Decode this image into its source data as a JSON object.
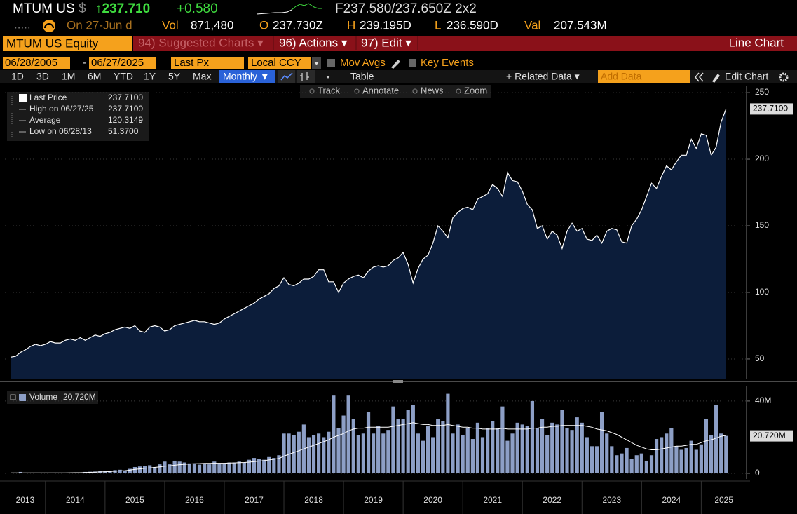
{
  "quote": {
    "ticker": "MTUM US",
    "currency": "$",
    "last": "↑237.710",
    "change": "+0.580",
    "bid_ask": "F237.580/237.650Z 2x2",
    "dots": ".....",
    "date": "On 27-Jun d",
    "vol_label": "Vol",
    "vol": "871,480",
    "open_label": "O",
    "open": "237.730Z",
    "high_label": "H",
    "high": "239.195D",
    "low_label": "L",
    "low": "236.590D",
    "val_label": "Val",
    "val": "207.543M"
  },
  "menu": {
    "security": "MTUM US Equity",
    "items": [
      "94) Suggested Charts ▾",
      "96) Actions ▾",
      "97) Edit ▾"
    ],
    "title": "Line Chart"
  },
  "settings": {
    "start": "06/28/2005",
    "sep": "-",
    "end": "06/27/2025",
    "field": "Last Px",
    "currency": "Local CCY",
    "options": [
      "Mov Avgs",
      "Key Events"
    ]
  },
  "toolbar": {
    "ranges": [
      "1D",
      "3D",
      "1M",
      "6M",
      "YTD",
      "1Y",
      "5Y",
      "Max"
    ],
    "period": "Monthly ▼",
    "table": "Table",
    "related": "+ Related Data ▾",
    "add_data": "Add Data",
    "edit": "Edit Chart"
  },
  "tools": [
    "Track",
    "Annotate",
    "News",
    "Zoom"
  ],
  "chart_data": {
    "type": "line",
    "xlim": [
      2013.32,
      2025.76
    ],
    "xticks": [
      2013,
      2014,
      2015,
      2016,
      2017,
      2018,
      2019,
      2020,
      2021,
      2022,
      2023,
      2024,
      2025
    ],
    "x": [
      2013.417,
      2013.5,
      2013.583,
      2013.667,
      2013.75,
      2013.833,
      2013.917,
      2014,
      2014.083,
      2014.167,
      2014.25,
      2014.333,
      2014.417,
      2014.5,
      2014.583,
      2014.667,
      2014.75,
      2014.833,
      2014.917,
      2015,
      2015.083,
      2015.167,
      2015.25,
      2015.333,
      2015.417,
      2015.5,
      2015.583,
      2015.667,
      2015.75,
      2015.833,
      2015.917,
      2016,
      2016.083,
      2016.167,
      2016.25,
      2016.333,
      2016.417,
      2016.5,
      2016.583,
      2016.667,
      2016.75,
      2016.833,
      2016.917,
      2017,
      2017.083,
      2017.167,
      2017.25,
      2017.333,
      2017.417,
      2017.5,
      2017.583,
      2017.667,
      2017.75,
      2017.833,
      2017.917,
      2018,
      2018.083,
      2018.167,
      2018.25,
      2018.333,
      2018.417,
      2018.5,
      2018.583,
      2018.667,
      2018.75,
      2018.833,
      2018.917,
      2019,
      2019.083,
      2019.167,
      2019.25,
      2019.333,
      2019.417,
      2019.5,
      2019.583,
      2019.667,
      2019.75,
      2019.833,
      2019.917,
      2020,
      2020.083,
      2020.167,
      2020.25,
      2020.333,
      2020.417,
      2020.5,
      2020.583,
      2020.667,
      2020.75,
      2020.833,
      2020.917,
      2021,
      2021.083,
      2021.167,
      2021.25,
      2021.333,
      2021.417,
      2021.5,
      2021.583,
      2021.667,
      2021.75,
      2021.833,
      2021.917,
      2022,
      2022.083,
      2022.167,
      2022.25,
      2022.333,
      2022.417,
      2022.5,
      2022.583,
      2022.667,
      2022.75,
      2022.833,
      2022.917,
      2023,
      2023.083,
      2023.167,
      2023.25,
      2023.333,
      2023.417,
      2023.5,
      2023.583,
      2023.667,
      2023.75,
      2023.833,
      2023.917,
      2024,
      2024.083,
      2024.167,
      2024.25,
      2024.333,
      2024.417,
      2024.5,
      2024.583,
      2024.667,
      2024.75,
      2024.833,
      2024.917,
      2025,
      2025.083,
      2025.167,
      2025.25,
      2025.333,
      2025.417
    ],
    "panels": [
      {
        "type": "area",
        "ylim": [
          34.7,
          255.3
        ],
        "yticks": [
          50,
          100,
          150,
          200,
          250
        ],
        "grid": true,
        "stats": [
          {
            "label": "High on 06/27/25",
            "value": "237.7100"
          },
          {
            "label": "Average",
            "value": "120.3149"
          },
          {
            "label": "Low on 06/28/13",
            "value": "51.3700"
          }
        ],
        "series": [
          {
            "name": "Last Price",
            "color": "#ffffff",
            "fill": "#0c1d3a",
            "last_label": "237.7100",
            "values": [
              51.37,
              52,
              55,
              57,
              59.5,
              61,
              60,
              61,
              63,
              62,
              62,
              64,
              65,
              64,
              66,
              64,
              66,
              68,
              67,
              69,
              70,
              72,
              73,
              74,
              73,
              75,
              71,
              70,
              74,
              75,
              74,
              71,
              72,
              75,
              76,
              77,
              78,
              79,
              78,
              78,
              77,
              76,
              77,
              80,
              82,
              84,
              86,
              88,
              90,
              92,
              95,
              97,
              99,
              103,
              105,
              111,
              106,
              105,
              107,
              110,
              110,
              112,
              117,
              117,
              108,
              108,
              100,
              107,
              110,
              112,
              113,
              111,
              116,
              119,
              120,
              119,
              120,
              124,
              126,
              130,
              121,
              107,
              118,
              125,
              128,
              137,
              150,
              146,
              141,
              156,
              160,
              163,
              164,
              162,
              170,
              172,
              174,
              181,
              178,
              172,
              190,
              184,
              183,
              176,
              166,
              162,
              148,
              150,
              140,
              146,
              143,
              133,
              146,
              152,
              146,
              148,
              140,
              139,
              143,
              137,
              146,
              148,
              147,
              138,
              137,
              150,
              155,
              162,
              172,
              182,
              178,
              187,
              195,
              192,
              198,
              203,
              203,
              215,
              208,
              219,
              218,
              203,
              209,
              228,
              237.71
            ]
          }
        ]
      },
      {
        "type": "bar",
        "ylim": [
          0,
          48.5
        ],
        "yticks": [
          0,
          {
            "value": 40,
            "label": "40M"
          }
        ],
        "grid": true,
        "series": [
          {
            "name": "Volume",
            "color": "#8d9fc6",
            "last_label": "20.720M",
            "values": [
              0.2,
              0.3,
              0.8,
              0.3,
              0.3,
              0.2,
              0.3,
              0.3,
              0.3,
              0.4,
              0.3,
              0.3,
              0.4,
              0.5,
              0.5,
              0.8,
              0.9,
              1.0,
              1.2,
              1.5,
              1.2,
              1.8,
              2.0,
              1.5,
              2.5,
              3.5,
              3.8,
              4.2,
              4.5,
              3.5,
              5.0,
              6.5,
              5.0,
              7.0,
              6.5,
              6.0,
              5.5,
              5.5,
              4.8,
              5.5,
              5.0,
              6.5,
              5.5,
              5.5,
              6.0,
              6.0,
              6.5,
              6.0,
              7.5,
              8.5,
              8.0,
              7.5,
              9.0,
              8.5,
              10.0,
              22,
              22,
              21,
              23,
              27,
              20,
              21,
              22,
              20,
              23,
              43,
              25,
              32,
              43,
              30,
              21,
              22,
              34,
              22,
              26,
              22,
              24,
              37,
              30,
              30,
              35,
              38,
              22,
              18,
              26,
              20,
              30,
              29,
              44,
              22,
              27,
              21,
              25,
              19,
              28,
              20,
              25,
              29,
              25,
              37,
              18,
              22,
              28,
              27,
              26,
              40,
              25,
              30,
              21,
              28,
              27,
              35,
              25,
              24,
              31,
              28,
              20,
              15,
              15,
              34,
              22,
              15,
              10,
              11,
              14,
              8,
              10,
              11,
              7,
              10,
              19,
              20,
              22,
              25,
              15,
              13,
              14,
              18,
              13,
              16,
              30,
              21,
              38,
              22,
              20.72
            ]
          },
          {
            "type": "line",
            "color": "#ffffff",
            "values": [
              0.3,
              0.3,
              0.3,
              0.3,
              0.3,
              0.3,
              0.3,
              0.3,
              0.3,
              0.3,
              0.3,
              0.3,
              0.35,
              0.4,
              0.4,
              0.5,
              0.6,
              0.7,
              0.8,
              0.9,
              1.0,
              1.2,
              1.4,
              1.5,
              1.8,
              2.2,
              2.5,
              2.8,
              3.0,
              3.3,
              3.6,
              4.0,
              4.2,
              4.5,
              4.8,
              5.0,
              5.2,
              5.3,
              5.4,
              5.5,
              5.5,
              5.6,
              5.6,
              5.6,
              5.7,
              5.8,
              5.9,
              6.0,
              6.2,
              6.5,
              6.8,
              7.0,
              7.4,
              7.8,
              8.2,
              9.5,
              10.5,
              11.5,
              12.5,
              13.5,
              14.5,
              15.5,
              16.5,
              17.5,
              18.5,
              20,
              21,
              22,
              23.5,
              24.5,
              25,
              25,
              25.5,
              25.5,
              25.5,
              25.5,
              25.5,
              26,
              26.5,
              27,
              27.5,
              28,
              27.5,
              27,
              27,
              26.5,
              26.5,
              26.5,
              27,
              26.5,
              26,
              25.5,
              25.5,
              25,
              25,
              24.5,
              24.5,
              24.5,
              24.5,
              25,
              24.5,
              24.5,
              24.5,
              24.5,
              24.5,
              25,
              25,
              25.5,
              25.5,
              26,
              26,
              26.5,
              26.5,
              26.5,
              26.5,
              26.5,
              26,
              25.5,
              24.5,
              24,
              23.5,
              22.5,
              21.5,
              20,
              18.5,
              17,
              15.5,
              14.5,
              13.5,
              13,
              13,
              13.5,
              14,
              14.5,
              15,
              15,
              15.5,
              16,
              16,
              17,
              18,
              18.5,
              19.5,
              20.5,
              21
            ]
          }
        ]
      }
    ]
  }
}
